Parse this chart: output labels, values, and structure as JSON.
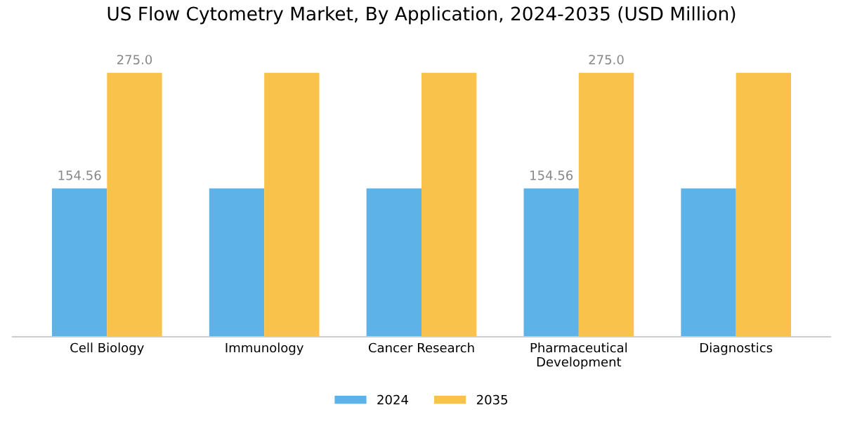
{
  "chart_data": {
    "type": "bar",
    "title": "US Flow Cytometry Market, By Application, 2024-2035 (USD Million)",
    "categories": [
      "Cell Biology",
      "Immunology",
      "Cancer Research",
      "Pharmaceutical\nDevelopment",
      "Diagnostics"
    ],
    "series": [
      {
        "name": "2024",
        "color": "#5db3e8",
        "values": [
          154.56,
          154.56,
          154.56,
          154.56,
          154.56
        ],
        "value_labels": [
          "154.56",
          null,
          null,
          "154.56",
          null
        ]
      },
      {
        "name": "2035",
        "color": "#f9c34b",
        "values": [
          275.0,
          275.0,
          275.0,
          275.0,
          275.0
        ],
        "value_labels": [
          "275.0",
          null,
          null,
          "275.0",
          null
        ]
      }
    ],
    "legend": "bottom",
    "grid": false
  }
}
